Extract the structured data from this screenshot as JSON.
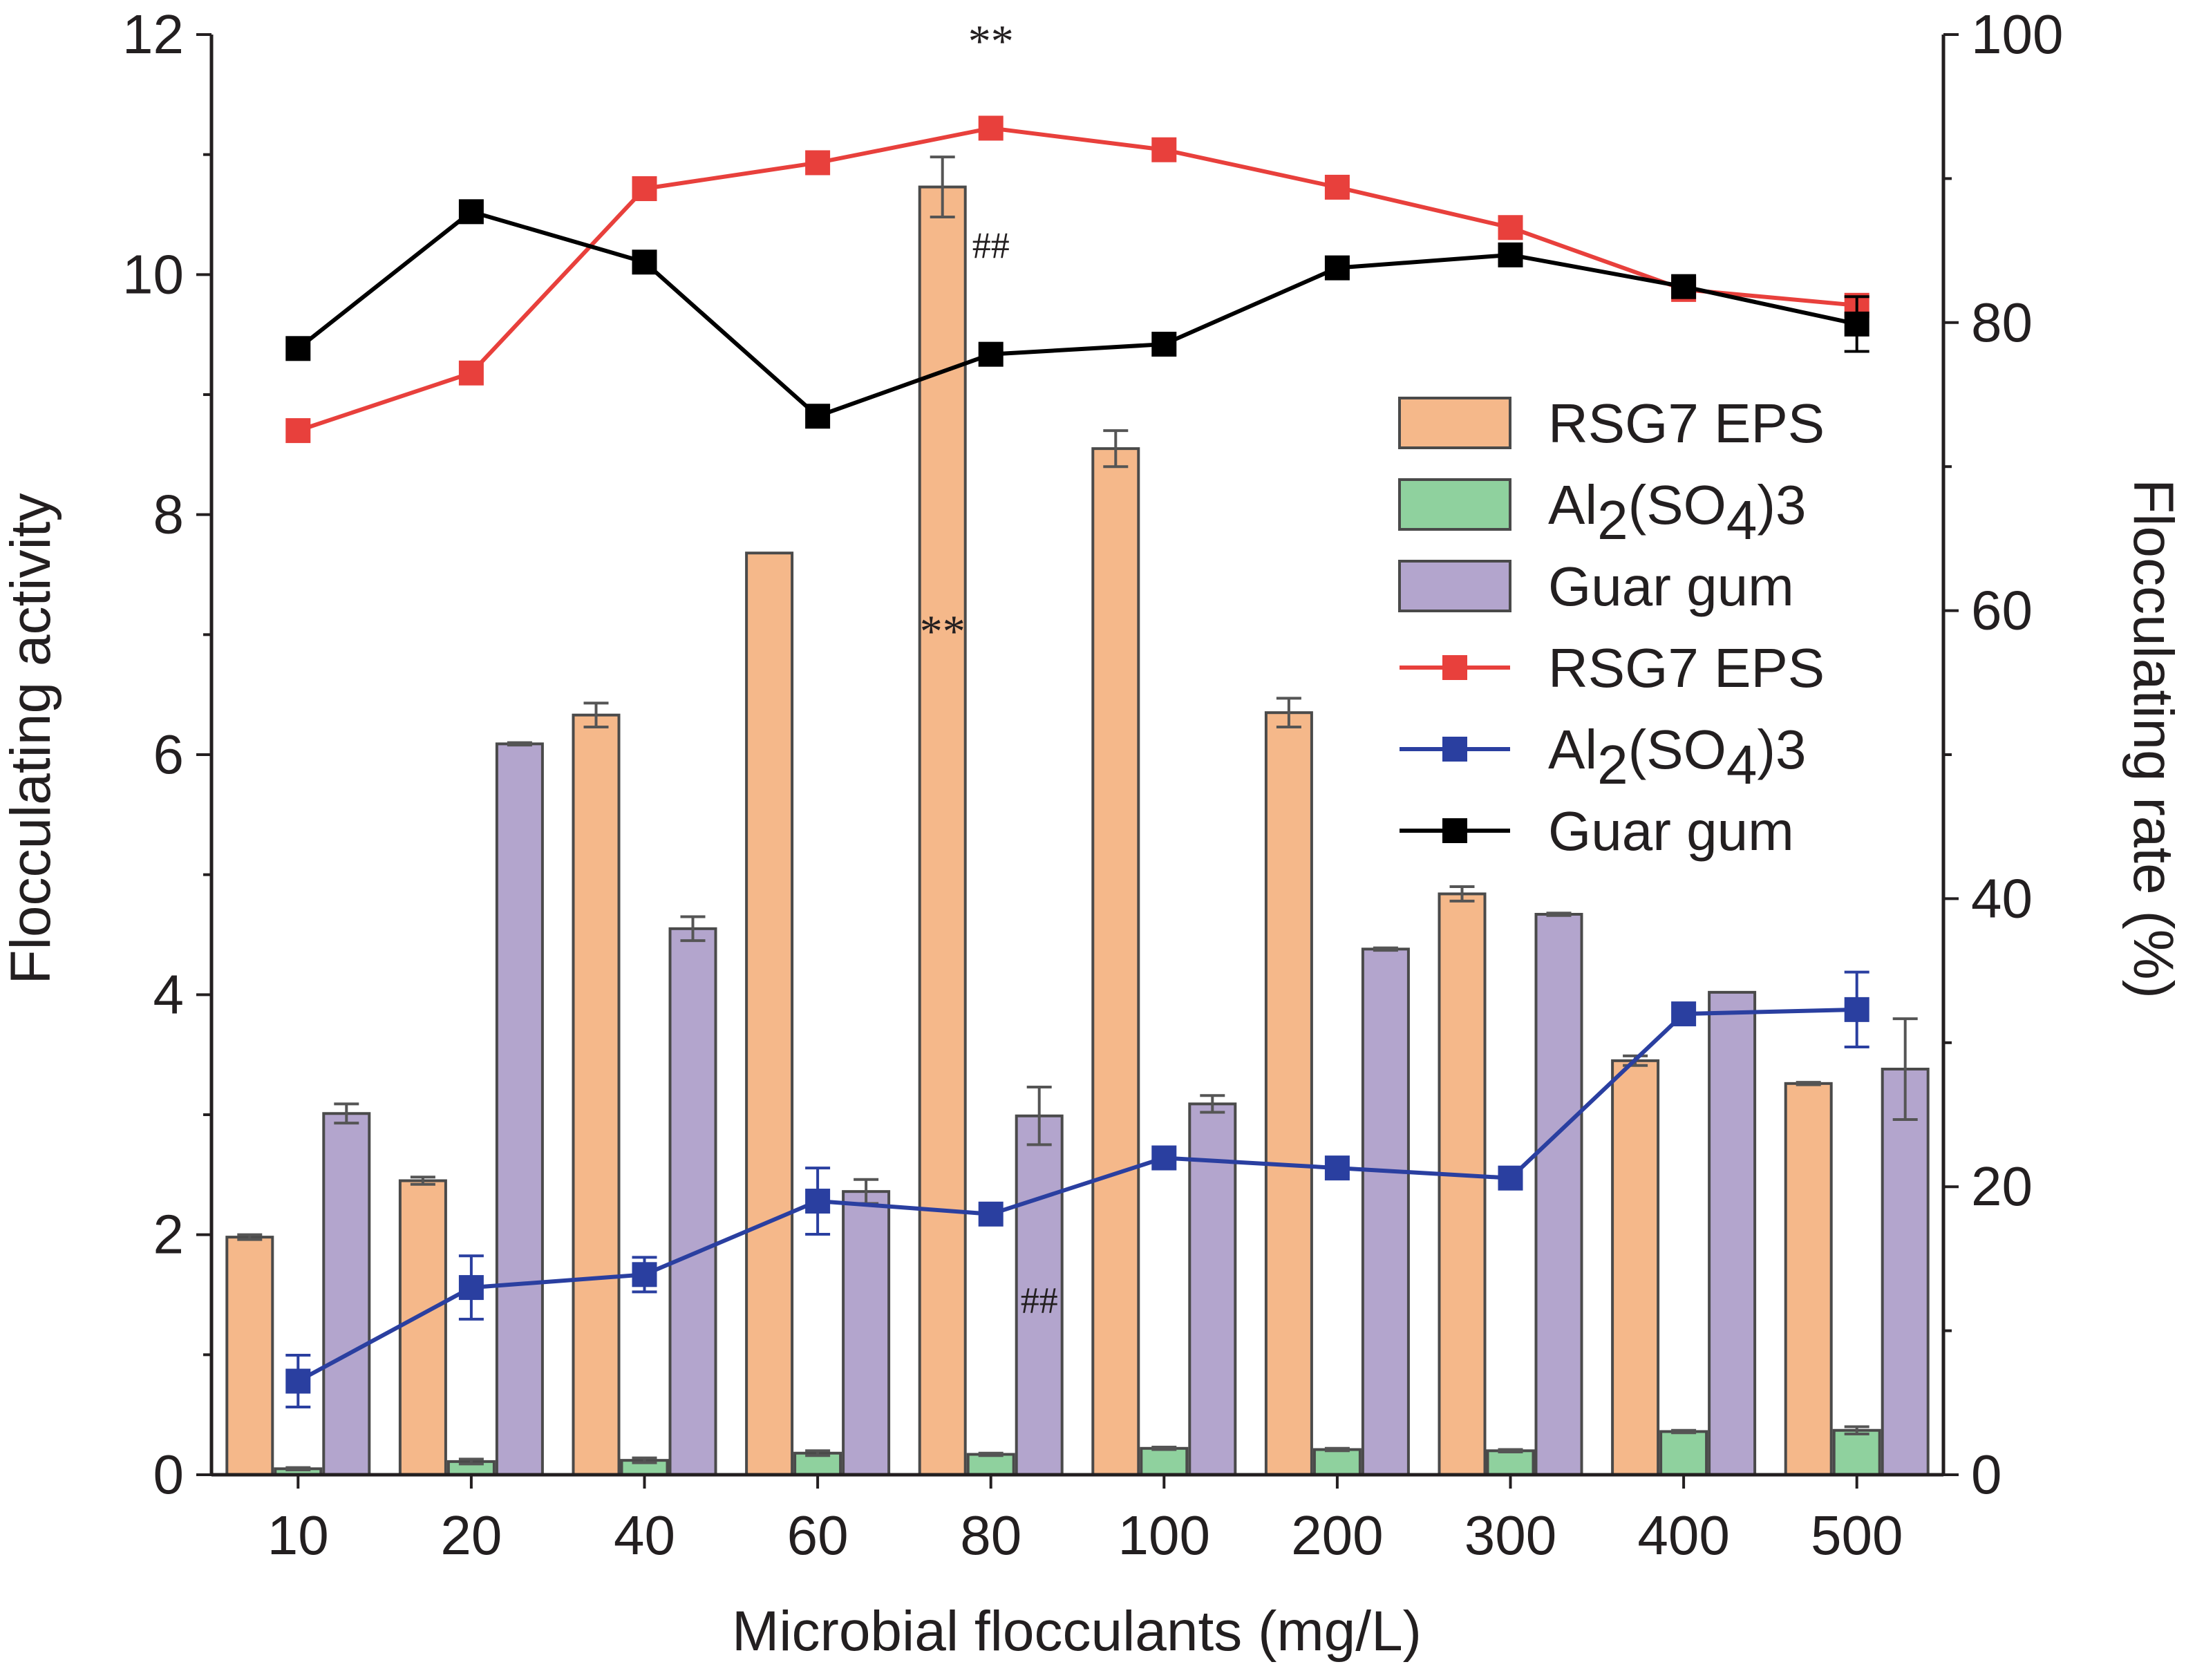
{
  "chart_data": {
    "type": "bar",
    "xlabel": "Microbial flocculants (mg/L)",
    "ylabel": "Flocculating activity",
    "y2label": "Flocculating rate (%)",
    "ylim": [
      0,
      12
    ],
    "y2lim": [
      0,
      100
    ],
    "yticks": [
      "0",
      "2",
      "4",
      "6",
      "8",
      "10",
      "12"
    ],
    "y2ticks": [
      "0",
      "20",
      "40",
      "60",
      "80",
      "100"
    ],
    "categories": [
      "10",
      "20",
      "40",
      "60",
      "80",
      "100",
      "200",
      "300",
      "400",
      "500"
    ],
    "bar_series": [
      {
        "name": "RSG7 EPS",
        "color": "#f5b88a",
        "values": [
          1.98,
          2.45,
          6.33,
          7.68,
          10.73,
          8.55,
          6.35,
          4.84,
          3.45,
          3.26
        ],
        "errors": [
          0.02,
          0.03,
          0.1,
          0,
          0.25,
          0.15,
          0.12,
          0.06,
          0.04,
          0.01
        ]
      },
      {
        "name": "Al2(SO4)3",
        "color": "#8fd19e",
        "values": [
          0.05,
          0.11,
          0.12,
          0.18,
          0.17,
          0.22,
          0.21,
          0.2,
          0.36,
          0.37
        ],
        "errors": [
          0.01,
          0.02,
          0.02,
          0.02,
          0.01,
          0.01,
          0.01,
          0.01,
          0.01,
          0.03
        ]
      },
      {
        "name": "Guar gum",
        "color": "#b3a5cd",
        "values": [
          3.01,
          6.09,
          4.55,
          2.36,
          2.99,
          3.09,
          4.38,
          4.67,
          4.02,
          3.38
        ],
        "errors": [
          0.08,
          0.01,
          0.1,
          0.1,
          0.24,
          0.07,
          0.01,
          0.01,
          0,
          0.42
        ]
      }
    ],
    "line_series": [
      {
        "name": "RSG7 EPS",
        "color": "#e8403c",
        "values": [
          72.5,
          76.5,
          89.3,
          91.1,
          93.5,
          92.0,
          89.4,
          86.6,
          82.3,
          81.2
        ],
        "errors": [
          0,
          0,
          0,
          0,
          0,
          0,
          0,
          0,
          0,
          0
        ]
      },
      {
        "name": "Al2(SO4)3",
        "color": "#2a3fa0",
        "values": [
          6.5,
          13.0,
          13.9,
          19.0,
          18.1,
          22.0,
          21.3,
          20.6,
          32.0,
          32.3
        ],
        "errors": [
          1.8,
          2.2,
          1.2,
          2.3,
          0,
          0,
          0,
          0,
          0,
          2.6
        ]
      },
      {
        "name": "Guar gum",
        "color": "#000000",
        "values": [
          78.2,
          87.7,
          84.2,
          73.5,
          77.8,
          78.5,
          83.8,
          84.7,
          82.5,
          79.9
        ],
        "errors": [
          0,
          0,
          0,
          0,
          0,
          0,
          0,
          0,
          0,
          1.9
        ]
      }
    ],
    "annotations": [
      {
        "text": "**",
        "category": "80",
        "axis": "y2",
        "value": 98.5
      },
      {
        "text": "##",
        "category": "80",
        "axis": "y2",
        "value": 84.5
      },
      {
        "text": "**",
        "category": "80",
        "axis": "y",
        "value": 6.9
      },
      {
        "text": "##",
        "category": "80",
        "axis": "y",
        "value": 1.35
      }
    ],
    "legend": {
      "position": "top-right",
      "entries": [
        {
          "label": "RSG7 EPS",
          "kind": "bar"
        },
        {
          "label": "Al",
          "sub1": "2",
          "mid": "(SO",
          "sub2": "4",
          "end": ")3",
          "kind": "bar"
        },
        {
          "label": "Guar gum",
          "kind": "bar"
        },
        {
          "label": "RSG7 EPS",
          "kind": "line"
        },
        {
          "label": "Al",
          "sub1": "2",
          "mid": "(SO",
          "sub2": "4",
          "end": ")3",
          "kind": "line"
        },
        {
          "label": "Guar gum",
          "kind": "line"
        }
      ]
    }
  }
}
